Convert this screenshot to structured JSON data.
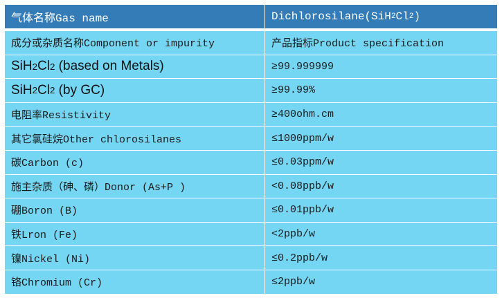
{
  "colors": {
    "header_bg": "#347cb8",
    "row_bg": "#75d6f3",
    "border": "#ffffff"
  },
  "header": {
    "col1": "气体名称Gas name",
    "col2_prefix": "Dichlorosilane(SiH",
    "col2_sub1": "2",
    "col2_mid": "Cl",
    "col2_sub2": "2",
    "col2_suffix": ")"
  },
  "subheader": {
    "col1": "成分或杂质名称Component or impurity",
    "col2": "产品指标Product specification"
  },
  "formula_rows": [
    {
      "a": "SiH",
      "s1": "2",
      "b": "Cl",
      "s2": "2",
      "rest": " (based on Metals)",
      "value": "≥99.999999"
    },
    {
      "a": "SiH",
      "s1": "2",
      "b": "Cl",
      "s2": "2",
      "rest": " (by GC)",
      "value": "≥99.99%"
    }
  ],
  "rows": [
    {
      "name": "电阻率Resistivity",
      "value": "≥400ohm.cm"
    },
    {
      "name": "其它氯硅烷Other chlorosilanes",
      "value": "≤1000ppm/w"
    },
    {
      "name": "碳Carbon (c)",
      "value": "≤0.03ppm/w"
    },
    {
      "name": "施主杂质（砷、磷）Donor (As+P )",
      "value": "<0.08ppb/w"
    },
    {
      "name": "硼Boron (B)",
      "value": "≤0.01ppb/w"
    },
    {
      "name": "铁Lron (Fe)",
      "value": "<2ppb/w"
    },
    {
      "name": "镍Nickel (Ni)",
      "value": "≤0.2ppb/w"
    },
    {
      "name": "铬Chromium (Cr)",
      "value": "≤2ppb/w"
    }
  ]
}
